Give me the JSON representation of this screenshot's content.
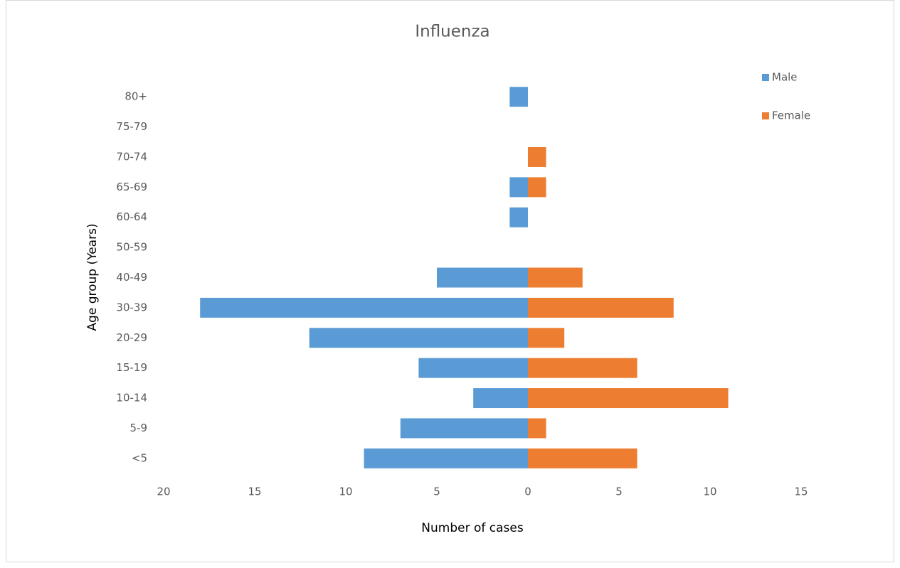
{
  "chart_data": {
    "type": "bar",
    "orientation": "horizontal",
    "title": "Influenza",
    "x_label": "Number of cases",
    "y_label": "Age group (Years)",
    "categories": [
      "80+",
      "75-79",
      "70-74",
      "65-69",
      "60-64",
      "50-59",
      "40-49",
      "30-39",
      "20-29",
      "15-19",
      "10-14",
      "5-9",
      "<5"
    ],
    "series": [
      {
        "name": "Male",
        "color": "#5b9bd5",
        "values": [
          -1,
          0,
          0,
          -1,
          -1,
          0,
          -5,
          -18,
          -12,
          -6,
          -3,
          -7,
          -9
        ]
      },
      {
        "name": "Female",
        "color": "#ed7d31",
        "values": [
          0,
          0,
          1,
          1,
          0,
          0,
          3,
          8,
          2,
          6,
          11,
          1,
          6
        ]
      }
    ],
    "xlim": [
      -20,
      15
    ],
    "xticks": [
      {
        "value": -20,
        "label": "20"
      },
      {
        "value": -15,
        "label": "15"
      },
      {
        "value": -10,
        "label": "10"
      },
      {
        "value": -5,
        "label": "5"
      },
      0,
      5,
      10,
      15
    ],
    "grid": false,
    "legend": "top-right"
  }
}
